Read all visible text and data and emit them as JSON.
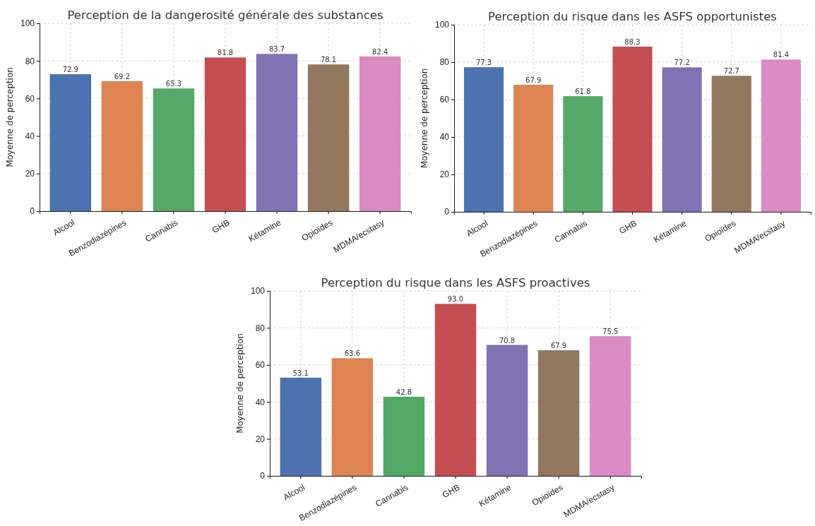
{
  "chart_data": [
    {
      "type": "bar",
      "title": "Perception de la dangerosité générale des substances",
      "ylabel": "Moyenne de perception",
      "categories": [
        "Alcool",
        "Benzodiazépines",
        "Cannabis",
        "GHB",
        "Kétamine",
        "Opioïdes",
        "MDMA/ecstasy"
      ],
      "values": [
        72.9,
        69.2,
        65.3,
        81.8,
        83.7,
        78.1,
        82.4
      ],
      "colors": [
        "#4c72b0",
        "#dd8452",
        "#55a868",
        "#c44e52",
        "#8172b3",
        "#937860",
        "#da8bc3"
      ],
      "ylim": [
        0,
        100
      ],
      "yticks": [
        0,
        20,
        40,
        60,
        80,
        100
      ],
      "grid": true,
      "data_labels": true
    },
    {
      "type": "bar",
      "title": "Perception du risque dans les ASFS opportunistes",
      "ylabel": "Moyenne de perception",
      "categories": [
        "Alcool",
        "Benzodiazépines",
        "Cannabis",
        "GHB",
        "Kétamine",
        "Opioïdes",
        "MDMA/ecstasy"
      ],
      "values": [
        77.3,
        67.9,
        61.8,
        88.3,
        77.2,
        72.7,
        81.4
      ],
      "colors": [
        "#4c72b0",
        "#dd8452",
        "#55a868",
        "#c44e52",
        "#8172b3",
        "#937860",
        "#da8bc3"
      ],
      "ylim": [
        0,
        100
      ],
      "yticks": [
        0,
        20,
        40,
        60,
        80,
        100
      ],
      "grid": true,
      "data_labels": true
    },
    {
      "type": "bar",
      "title": "Perception du risque dans les ASFS proactives",
      "ylabel": "Moyenne de perception",
      "categories": [
        "Alcool",
        "Benzodiazépines",
        "Cannabis",
        "GHB",
        "Kétamine",
        "Opioïdes",
        "MDMA/ecstasy"
      ],
      "values": [
        53.1,
        63.6,
        42.8,
        93.0,
        70.8,
        67.9,
        75.5
      ],
      "value_labels": [
        "53.1",
        "63.6",
        "42.8",
        "93.0",
        "70.8",
        "67.9",
        "75.5"
      ],
      "colors": [
        "#4c72b0",
        "#dd8452",
        "#55a868",
        "#c44e52",
        "#8172b3",
        "#937860",
        "#da8bc3"
      ],
      "ylim": [
        0,
        100
      ],
      "yticks": [
        0,
        20,
        40,
        60,
        80,
        100
      ],
      "grid": true
    }
  ]
}
